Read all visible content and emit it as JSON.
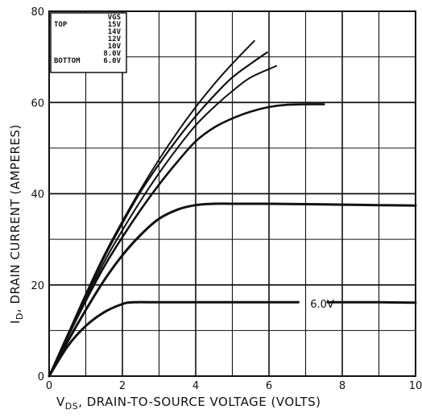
{
  "chart_data": {
    "type": "line",
    "xlabel": {
      "main": "V",
      "sub": "DS",
      "rest": ", DRAIN-TO-SOURCE VOLTAGE (VOLTS)"
    },
    "ylabel": {
      "main": "I",
      "sub": "D",
      "rest": ", DRAIN CURRENT (AMPERES)"
    },
    "xlim": [
      0,
      10
    ],
    "ylim": [
      0,
      80
    ],
    "x_ticks": [
      0,
      2,
      4,
      6,
      8,
      10
    ],
    "y_ticks": [
      0,
      20,
      40,
      60,
      80
    ],
    "grid": true,
    "legend": {
      "placement": "top-left",
      "header": "VGS",
      "top_label": "TOP",
      "bottom_label": "BOTTOM",
      "entries": [
        "15V",
        "14V",
        "12V",
        "10V",
        "8.0V",
        "6.0V"
      ]
    },
    "annotation": "6.0V",
    "series": [
      {
        "name": "15V",
        "points": [
          [
            0,
            0
          ],
          [
            0.5,
            9
          ],
          [
            1,
            18
          ],
          [
            1.5,
            26.5
          ],
          [
            2,
            34
          ],
          [
            2.5,
            41
          ],
          [
            3,
            47.5
          ],
          [
            3.5,
            53.5
          ],
          [
            4,
            59
          ],
          [
            4.5,
            64
          ],
          [
            5,
            68.5
          ],
          [
            5.6,
            73.5
          ]
        ]
      },
      {
        "name": "14V",
        "points": [
          [
            0,
            0
          ],
          [
            0.5,
            9
          ],
          [
            1,
            17.5
          ],
          [
            1.5,
            26
          ],
          [
            2,
            33.5
          ],
          [
            2.5,
            40.5
          ],
          [
            3,
            46.5
          ],
          [
            3.5,
            52
          ],
          [
            4,
            57
          ],
          [
            4.5,
            61.5
          ],
          [
            5,
            65.5
          ],
          [
            5.5,
            68.5
          ],
          [
            5.95,
            71
          ]
        ]
      },
      {
        "name": "12V",
        "points": [
          [
            0,
            0
          ],
          [
            0.5,
            8.8
          ],
          [
            1,
            17
          ],
          [
            1.5,
            25
          ],
          [
            2,
            32
          ],
          [
            2.5,
            38.5
          ],
          [
            3,
            44.5
          ],
          [
            3.5,
            50
          ],
          [
            4,
            55
          ],
          [
            4.5,
            59
          ],
          [
            5,
            62.5
          ],
          [
            5.5,
            65.5
          ],
          [
            6.2,
            68
          ]
        ]
      },
      {
        "name": "10V",
        "points": [
          [
            0,
            0
          ],
          [
            0.5,
            8.5
          ],
          [
            1,
            16.5
          ],
          [
            1.5,
            24
          ],
          [
            2,
            30.5
          ],
          [
            2.5,
            36.5
          ],
          [
            3,
            42
          ],
          [
            3.5,
            47
          ],
          [
            4,
            51.5
          ],
          [
            4.5,
            54.5
          ],
          [
            5,
            56.5
          ],
          [
            5.5,
            58
          ],
          [
            6,
            59
          ],
          [
            6.5,
            59.5
          ],
          [
            7,
            59.6
          ],
          [
            7.5,
            59.6
          ]
        ]
      },
      {
        "name": "8.0V",
        "points": [
          [
            0,
            0
          ],
          [
            0.5,
            7.5
          ],
          [
            1,
            14.5
          ],
          [
            1.5,
            21
          ],
          [
            2,
            26.5
          ],
          [
            2.5,
            31
          ],
          [
            3,
            34.5
          ],
          [
            3.5,
            36.5
          ],
          [
            4,
            37.5
          ],
          [
            4.5,
            37.8
          ],
          [
            5,
            37.8
          ],
          [
            6,
            37.8
          ],
          [
            7,
            37.7
          ],
          [
            8,
            37.6
          ],
          [
            9,
            37.5
          ],
          [
            10,
            37.4
          ]
        ]
      },
      {
        "name": "6.0V",
        "points": [
          [
            0,
            0
          ],
          [
            0.5,
            6.5
          ],
          [
            1,
            11
          ],
          [
            1.5,
            14
          ],
          [
            2,
            15.8
          ],
          [
            2.3,
            16.2
          ],
          [
            3,
            16.2
          ],
          [
            4,
            16.2
          ],
          [
            5,
            16.2
          ],
          [
            6,
            16.2
          ],
          [
            6.8,
            16.2
          ]
        ]
      },
      {
        "name": "6.0V-tail",
        "points": [
          [
            7.6,
            16.2
          ],
          [
            8,
            16.2
          ],
          [
            9,
            16.2
          ],
          [
            10,
            16.1
          ]
        ]
      }
    ]
  }
}
